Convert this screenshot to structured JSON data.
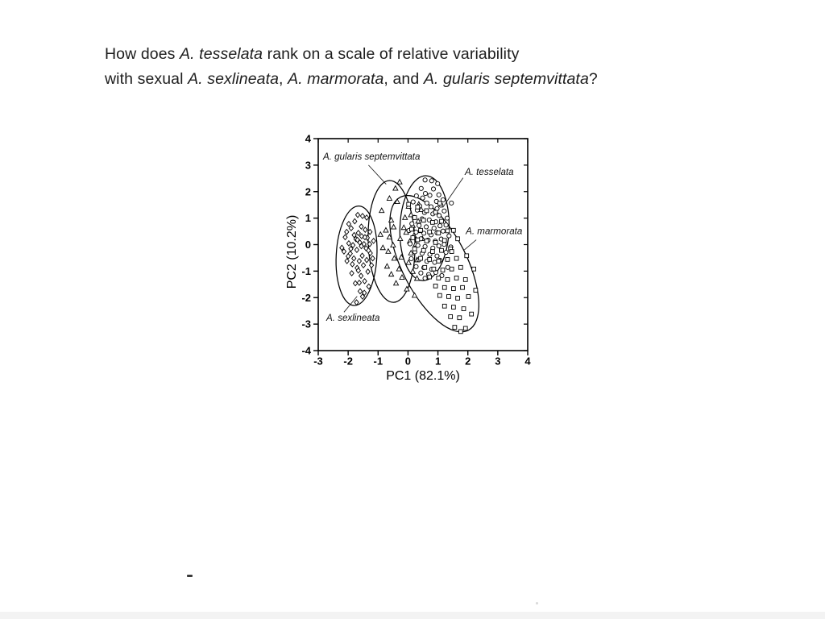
{
  "page": {
    "background": "#ffffff",
    "ink_color": "#000000",
    "text_color": "#1d1d1d"
  },
  "question": {
    "line1_segments": [
      {
        "text": "How does ",
        "italic": false
      },
      {
        "text": "A. tesselata",
        "italic": true
      },
      {
        "text": " rank on a scale of relative variability",
        "italic": false
      }
    ],
    "line2_segments": [
      {
        "text": "with sexual ",
        "italic": false
      },
      {
        "text": "A. sexlineata",
        "italic": true
      },
      {
        "text": ", ",
        "italic": false
      },
      {
        "text": "A. marmorata",
        "italic": true
      },
      {
        "text": ", and ",
        "italic": false
      },
      {
        "text": "A. gularis septemvittata",
        "italic": true
      },
      {
        "text": "?",
        "italic": false
      }
    ]
  },
  "chart_data": {
    "type": "scatter",
    "title": "",
    "xlabel": "PC1 (82.1%)",
    "ylabel": "PC2 (10.2%)",
    "xlim": [
      -3,
      4
    ],
    "ylim": [
      -4,
      4
    ],
    "x_ticks": [
      -3,
      -2,
      -1,
      0,
      1,
      2,
      3,
      4
    ],
    "y_ticks": [
      -4,
      -3,
      -2,
      -1,
      0,
      1,
      2,
      3,
      4
    ],
    "grid": false,
    "frame": true,
    "legend": "annotated ellipses with leader lines",
    "series": [
      {
        "name": "A. sexlineata",
        "marker": "diamond",
        "ellipse": {
          "cx": -1.72,
          "cy": -0.42,
          "rx": 0.68,
          "ry": 1.88,
          "rotate_deg": 3
        },
        "label": {
          "text": "A. sexlineata",
          "x": -2.73,
          "y": -2.87,
          "anchor": "start"
        },
        "leader": [
          [
            -2.14,
            -2.55
          ],
          [
            -1.7,
            -1.95
          ]
        ],
        "points": [
          [
            -2.21,
            -0.12
          ],
          [
            -2.1,
            0.28
          ],
          [
            -2.04,
            -0.62
          ],
          [
            -1.98,
            0.05
          ],
          [
            -1.93,
            -0.34
          ],
          [
            -1.9,
            0.62
          ],
          [
            -1.88,
            -1.08
          ],
          [
            -1.84,
            -0.02
          ],
          [
            -1.81,
            -0.52
          ],
          [
            -1.78,
            0.88
          ],
          [
            -1.76,
            -1.46
          ],
          [
            -1.74,
            0.21
          ],
          [
            -1.71,
            -0.2
          ],
          [
            -1.7,
            -0.88
          ],
          [
            -1.68,
            1.12
          ],
          [
            -1.66,
            0.44
          ],
          [
            -1.63,
            -0.62
          ],
          [
            -1.61,
            0.08
          ],
          [
            -1.6,
            -1.76
          ],
          [
            -1.57,
            -1.18
          ],
          [
            -1.55,
            0.32
          ],
          [
            -1.53,
            -0.42
          ],
          [
            -1.52,
            1.08
          ],
          [
            -1.49,
            -0.78
          ],
          [
            -1.47,
            0.02
          ],
          [
            -1.45,
            -1.38
          ],
          [
            -1.43,
            0.56
          ],
          [
            -1.4,
            -0.14
          ],
          [
            -1.38,
            -0.58
          ],
          [
            -1.36,
            0.26
          ],
          [
            -1.34,
            -1.02
          ],
          [
            -1.31,
            -1.58
          ],
          [
            -1.28,
            0.02
          ],
          [
            -1.26,
            -0.32
          ],
          [
            -1.22,
            -0.78
          ],
          [
            -1.15,
            0.14
          ],
          [
            -1.72,
            -2.18
          ],
          [
            -1.91,
            -0.16
          ],
          [
            -2.0,
            -0.44
          ],
          [
            -1.56,
            0.68
          ],
          [
            -1.52,
            -1.96
          ],
          [
            -1.66,
            -0.98
          ],
          [
            -1.38,
            1.02
          ],
          [
            -1.8,
            0.36
          ],
          [
            -2.14,
            -0.26
          ],
          [
            -1.46,
            -1.82
          ],
          [
            -1.27,
            0.48
          ],
          [
            -1.56,
            -0.06
          ],
          [
            -1.69,
            0.18
          ],
          [
            -1.44,
            0.28
          ],
          [
            -1.86,
            -0.74
          ],
          [
            -1.63,
            -1.44
          ],
          [
            -1.32,
            -0.22
          ],
          [
            -2.05,
            0.48
          ],
          [
            -1.18,
            -0.52
          ],
          [
            -1.98,
            0.78
          ]
        ]
      },
      {
        "name": "A. gularis septemvittata",
        "marker": "triangle",
        "ellipse": {
          "cx": -0.55,
          "cy": 0.12,
          "rx": 0.78,
          "ry": 2.3,
          "rotate_deg": -2
        },
        "label": {
          "text": "A. gularis septemvittata",
          "x": -2.84,
          "y": 3.21,
          "anchor": "start"
        },
        "leader": [
          [
            -1.32,
            3.0
          ],
          [
            -0.73,
            2.28
          ]
        ],
        "points": [
          [
            -0.28,
            2.36
          ],
          [
            -0.42,
            2.12
          ],
          [
            -0.88,
            1.28
          ],
          [
            -0.56,
            0.92
          ],
          [
            -0.74,
            0.54
          ],
          [
            -0.92,
            0.38
          ],
          [
            -0.62,
            0.28
          ],
          [
            -0.5,
            -0.02
          ],
          [
            -0.66,
            -0.26
          ],
          [
            -0.46,
            -0.52
          ],
          [
            -0.7,
            -0.82
          ],
          [
            -0.56,
            -1.12
          ],
          [
            -0.4,
            -1.46
          ],
          [
            -0.3,
            -0.92
          ],
          [
            -0.22,
            -0.48
          ],
          [
            -0.26,
            0.22
          ],
          [
            -0.14,
            0.64
          ],
          [
            -0.1,
            1.02
          ],
          [
            0.02,
            1.44
          ],
          [
            0.1,
            1.12
          ],
          [
            0.16,
            0.72
          ],
          [
            0.2,
            0.34
          ],
          [
            0.26,
            0.02
          ],
          [
            0.1,
            -0.32
          ],
          [
            0.02,
            -0.68
          ],
          [
            0.16,
            -1.02
          ],
          [
            0.3,
            -1.28
          ],
          [
            -0.04,
            -1.68
          ],
          [
            0.34,
            0.88
          ],
          [
            0.4,
            0.52
          ],
          [
            -0.36,
            1.62
          ],
          [
            -0.2,
            -1.24
          ],
          [
            0.06,
            0.12
          ],
          [
            -0.06,
            0.46
          ],
          [
            0.3,
            -0.58
          ],
          [
            -0.84,
            -0.12
          ],
          [
            0.44,
            1.32
          ],
          [
            0.22,
            -1.92
          ],
          [
            -0.62,
            1.74
          ],
          [
            0.48,
            0.22
          ],
          [
            0.36,
            1.52
          ],
          [
            -0.48,
            0.66
          ]
        ]
      },
      {
        "name": "A. tesselata",
        "marker": "circle",
        "ellipse": {
          "cx": 0.55,
          "cy": 0.62,
          "rx": 0.82,
          "ry": 1.98,
          "rotate_deg": 2
        },
        "label": {
          "text": "A. tesselata",
          "x": 1.9,
          "y": 2.63,
          "anchor": "start"
        },
        "leader": [
          [
            1.84,
            2.52
          ],
          [
            1.16,
            1.4
          ]
        ],
        "points": [
          [
            0.57,
            2.44
          ],
          [
            0.79,
            2.41
          ],
          [
            0.99,
            2.3
          ],
          [
            0.44,
            2.12
          ],
          [
            0.85,
            2.1
          ],
          [
            0.58,
            1.93
          ],
          [
            0.73,
            1.86
          ],
          [
            1.03,
            1.88
          ],
          [
            0.49,
            1.76
          ],
          [
            1.17,
            1.69
          ],
          [
            0.63,
            1.57
          ],
          [
            0.95,
            1.63
          ],
          [
            0.39,
            1.46
          ],
          [
            0.77,
            1.43
          ],
          [
            1.45,
            1.57
          ],
          [
            1.1,
            1.49
          ],
          [
            0.17,
            1.61
          ],
          [
            0.28,
            1.84
          ],
          [
            0.97,
            1.36
          ],
          [
            0.55,
            1.21
          ],
          [
            0.83,
            1.16
          ],
          [
            1.21,
            1.27
          ],
          [
            0.31,
            1.3
          ],
          [
            1.04,
            1.1
          ],
          [
            0.2,
            1.03
          ],
          [
            0.47,
            0.97
          ],
          [
            0.71,
            0.93
          ],
          [
            0.93,
            0.86
          ],
          [
            1.31,
            1.0
          ],
          [
            0.13,
            0.79
          ],
          [
            0.37,
            0.72
          ],
          [
            0.61,
            0.67
          ],
          [
            0.87,
            0.62
          ],
          [
            1.07,
            0.71
          ],
          [
            1.27,
            0.74
          ],
          [
            0.03,
            0.53
          ],
          [
            0.27,
            0.47
          ],
          [
            0.53,
            0.43
          ],
          [
            0.77,
            0.37
          ],
          [
            0.97,
            0.45
          ],
          [
            1.17,
            0.51
          ],
          [
            1.37,
            0.33
          ],
          [
            0.17,
            0.27
          ],
          [
            0.43,
            0.22
          ],
          [
            0.67,
            0.17
          ],
          [
            0.91,
            0.13
          ],
          [
            1.11,
            0.21
          ],
          [
            0.07,
            0.03
          ],
          [
            0.33,
            -0.03
          ],
          [
            0.57,
            -0.07
          ],
          [
            0.83,
            -0.13
          ],
          [
            1.03,
            -0.05
          ],
          [
            1.21,
            0.01
          ],
          [
            0.23,
            -0.27
          ],
          [
            0.47,
            -0.33
          ],
          [
            0.73,
            -0.37
          ],
          [
            0.97,
            -0.43
          ],
          [
            1.27,
            -0.29
          ],
          [
            0.11,
            -0.53
          ],
          [
            0.37,
            -0.57
          ],
          [
            0.63,
            -0.63
          ],
          [
            0.89,
            -0.67
          ],
          [
            1.07,
            -0.59
          ],
          [
            0.27,
            -0.83
          ],
          [
            0.53,
            -0.87
          ],
          [
            0.79,
            -0.93
          ],
          [
            1.33,
            -0.86
          ],
          [
            0.43,
            -1.07
          ],
          [
            0.69,
            -1.13
          ],
          [
            0.93,
            -1.05
          ],
          [
            1.13,
            -1.17
          ],
          [
            0.57,
            -1.27
          ],
          [
            1.43,
            -0.09
          ]
        ]
      },
      {
        "name": "A. marmorata",
        "marker": "square",
        "ellipse": {
          "cx": 0.88,
          "cy": -0.72,
          "rx": 1.08,
          "ry": 2.82,
          "rotate_deg": -27
        },
        "label": {
          "text": "A. marmorata",
          "x": 1.93,
          "y": 0.4,
          "anchor": "start"
        },
        "leader": [
          [
            2.28,
            0.18
          ],
          [
            1.88,
            -0.2
          ]
        ],
        "points": [
          [
            0.02,
            1.52
          ],
          [
            0.32,
            1.42
          ],
          [
            0.62,
            1.28
          ],
          [
            0.92,
            1.22
          ],
          [
            0.22,
            1.02
          ],
          [
            0.52,
            0.92
          ],
          [
            0.82,
            0.84
          ],
          [
            1.12,
            0.88
          ],
          [
            0.12,
            0.58
          ],
          [
            0.42,
            0.54
          ],
          [
            0.72,
            0.48
          ],
          [
            1.02,
            0.44
          ],
          [
            1.32,
            0.52
          ],
          [
            0.32,
            0.18
          ],
          [
            0.62,
            0.14
          ],
          [
            0.92,
            0.08
          ],
          [
            1.22,
            0.16
          ],
          [
            1.52,
            0.54
          ],
          [
            0.22,
            -0.16
          ],
          [
            0.52,
            -0.22
          ],
          [
            0.82,
            -0.26
          ],
          [
            1.12,
            -0.22
          ],
          [
            1.42,
            -0.16
          ],
          [
            0.42,
            -0.52
          ],
          [
            0.72,
            -0.56
          ],
          [
            1.02,
            -0.62
          ],
          [
            1.32,
            -0.56
          ],
          [
            1.62,
            -0.52
          ],
          [
            0.56,
            -0.86
          ],
          [
            0.86,
            -0.92
          ],
          [
            1.16,
            -0.96
          ],
          [
            1.46,
            -0.92
          ],
          [
            1.76,
            -0.86
          ],
          [
            0.72,
            -1.22
          ],
          [
            1.02,
            -1.26
          ],
          [
            1.32,
            -1.32
          ],
          [
            1.62,
            -1.26
          ],
          [
            1.92,
            -1.32
          ],
          [
            0.92,
            -1.56
          ],
          [
            1.22,
            -1.62
          ],
          [
            1.52,
            -1.66
          ],
          [
            1.82,
            -1.62
          ],
          [
            1.06,
            -1.92
          ],
          [
            1.36,
            -1.96
          ],
          [
            1.66,
            -2.02
          ],
          [
            2.02,
            -1.96
          ],
          [
            1.22,
            -2.32
          ],
          [
            1.52,
            -2.36
          ],
          [
            1.86,
            -2.42
          ],
          [
            1.42,
            -2.72
          ],
          [
            1.72,
            -2.76
          ],
          [
            1.56,
            -3.12
          ],
          [
            1.92,
            -3.16
          ],
          [
            2.26,
            -1.72
          ],
          [
            2.12,
            -2.62
          ],
          [
            1.06,
            1.56
          ],
          [
            2.2,
            -0.92
          ],
          [
            1.66,
            0.22
          ],
          [
            1.96,
            -0.42
          ],
          [
            0.16,
            0.26
          ],
          [
            1.76,
            -3.28
          ],
          [
            1.46,
            -0.26
          ]
        ]
      }
    ]
  },
  "artifacts": {
    "stray_mark": "small dark dash lower-left area",
    "stray_dot": "faint dot near bottom right"
  }
}
